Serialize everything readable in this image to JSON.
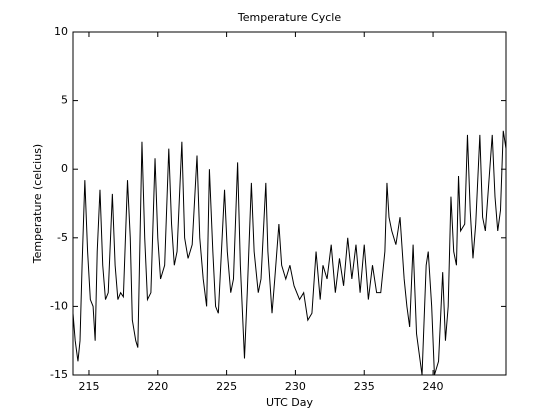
{
  "chart_data": {
    "type": "line",
    "title": "Temperature Cycle",
    "xlabel": "UTC Day",
    "ylabel": "Temperature (celcius)",
    "color": "#000000",
    "xlim": [
      213.84,
      245.3
    ],
    "xticks": [
      215,
      220,
      225,
      230,
      235,
      240
    ],
    "ylim": [
      -15,
      10
    ],
    "yticks": [
      -15,
      -10,
      -5,
      0,
      5,
      10
    ],
    "x": [
      213.84,
      214.0,
      214.2,
      214.35,
      214.5,
      214.7,
      214.9,
      215.1,
      215.3,
      215.45,
      215.6,
      215.8,
      216.0,
      216.2,
      216.4,
      216.7,
      216.9,
      217.1,
      217.3,
      217.5,
      217.8,
      218.0,
      218.15,
      218.4,
      218.55,
      218.85,
      219.05,
      219.25,
      219.5,
      219.8,
      220.0,
      220.2,
      220.5,
      220.8,
      221.0,
      221.2,
      221.4,
      221.75,
      221.95,
      222.2,
      222.5,
      222.85,
      223.05,
      223.3,
      223.55,
      223.75,
      224.0,
      224.2,
      224.4,
      224.85,
      225.05,
      225.3,
      225.5,
      225.8,
      226.0,
      226.3,
      226.5,
      226.8,
      227.0,
      227.3,
      227.5,
      227.85,
      228.0,
      228.3,
      228.5,
      228.8,
      229.0,
      229.3,
      229.6,
      229.9,
      230.3,
      230.6,
      230.9,
      231.2,
      231.5,
      231.8,
      232.0,
      232.3,
      232.6,
      232.9,
      233.2,
      233.5,
      233.8,
      234.1,
      234.4,
      234.7,
      235.0,
      235.3,
      235.6,
      235.9,
      236.2,
      236.5,
      236.65,
      236.8,
      237.0,
      237.3,
      237.6,
      237.9,
      238.1,
      238.3,
      238.55,
      238.8,
      239.0,
      239.2,
      239.5,
      239.65,
      239.9,
      240.1,
      240.4,
      240.7,
      240.9,
      241.1,
      241.3,
      241.5,
      241.7,
      241.85,
      242.0,
      242.3,
      242.5,
      242.7,
      242.9,
      243.1,
      243.4,
      243.6,
      243.8,
      244.3,
      244.5,
      244.7,
      244.9,
      245.1,
      245.3
    ],
    "values": [
      -10.5,
      -12.5,
      -14,
      -12.5,
      -7,
      -0.8,
      -6,
      -9.5,
      -10,
      -12.5,
      -6,
      -1.5,
      -7,
      -9.5,
      -9,
      -1.8,
      -7,
      -9.5,
      -9,
      -9.3,
      -0.8,
      -5,
      -11,
      -12.5,
      -13,
      2,
      -5,
      -9.5,
      -9,
      0.8,
      -5,
      -8,
      -7,
      1.5,
      -4,
      -7,
      -6,
      2,
      -5,
      -6.5,
      -5.5,
      1,
      -5,
      -8,
      -10,
      0,
      -6,
      -10,
      -10.5,
      -1.5,
      -6,
      -9,
      -8,
      0.5,
      -7,
      -13.8,
      -9,
      -1,
      -6,
      -9,
      -8,
      -1,
      -6,
      -10.5,
      -8,
      -4,
      -7,
      -8,
      -7,
      -8.5,
      -9.5,
      -9,
      -11,
      -10.5,
      -6,
      -9.5,
      -7,
      -8,
      -5.5,
      -9,
      -6.5,
      -8.5,
      -5,
      -8,
      -5.5,
      -9,
      -5.5,
      -9.5,
      -7,
      -9,
      -9,
      -6,
      -1,
      -3.5,
      -4.5,
      -5.5,
      -3.5,
      -8,
      -10,
      -11.5,
      -5.5,
      -12,
      -13.5,
      -15,
      -7,
      -6,
      -10,
      -15,
      -14,
      -7.5,
      -12.5,
      -10,
      -2,
      -6,
      -7,
      -0.5,
      -4.5,
      -4,
      2.5,
      -3,
      -6.5,
      -4,
      2.5,
      -3.5,
      -4.5,
      2.5,
      -2,
      -4.5,
      -3,
      2.8,
      1.5
    ]
  }
}
